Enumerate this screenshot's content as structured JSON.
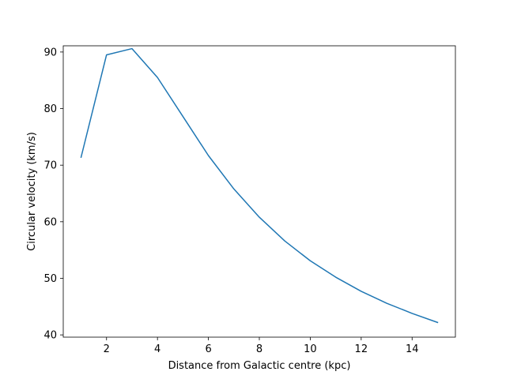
{
  "chart_data": {
    "type": "line",
    "xlabel": "Distance from Galactic centre (kpc)",
    "ylabel": "Circular velocity (km/s)",
    "xlim": [
      0.3,
      15.7
    ],
    "ylim": [
      39.6,
      91.1
    ],
    "xticks": [
      2,
      4,
      6,
      8,
      10,
      12,
      14
    ],
    "yticks": [
      40,
      50,
      60,
      70,
      80,
      90
    ],
    "grid": false,
    "series": [
      {
        "color": "#1f77b4",
        "x": [
          1,
          2,
          3,
          4,
          5,
          6,
          7,
          8,
          9,
          10,
          11,
          12,
          13,
          14,
          15
        ],
        "y": [
          71.4,
          89.5,
          90.6,
          85.5,
          78.6,
          71.7,
          65.8,
          60.8,
          56.6,
          53.1,
          50.2,
          47.7,
          45.6,
          43.8,
          42.2
        ]
      }
    ]
  }
}
